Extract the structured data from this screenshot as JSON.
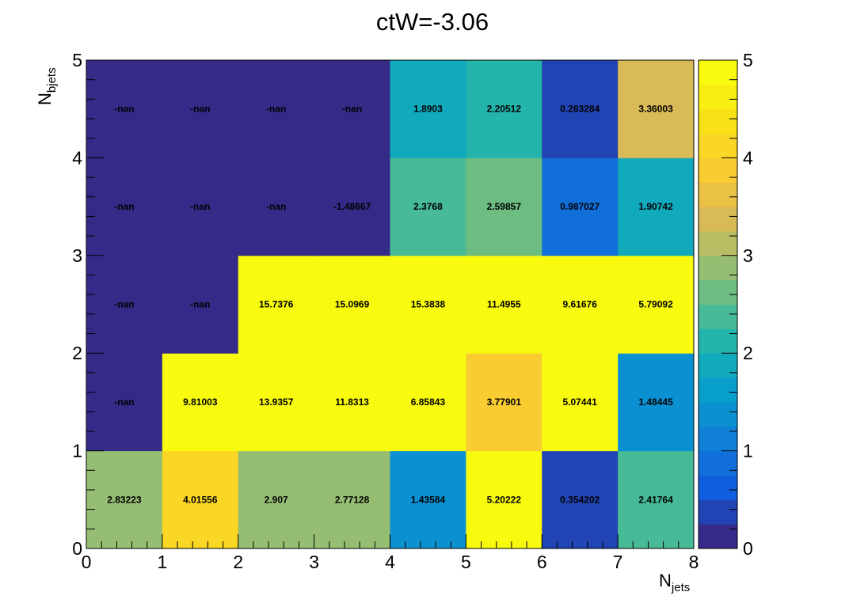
{
  "chart_data": {
    "type": "heatmap",
    "title": "ctW=-3.06",
    "xlabel": "N",
    "xlabel_sub": "jets",
    "ylabel": "N",
    "ylabel_sub": "bjets",
    "xlim": [
      0,
      8
    ],
    "ylim": [
      0,
      5
    ],
    "x_ticks": [
      "0",
      "1",
      "2",
      "3",
      "4",
      "5",
      "6",
      "7",
      "8"
    ],
    "y_ticks": [
      "0",
      "1",
      "2",
      "3",
      "4",
      "5"
    ],
    "colorbar": {
      "min": 0,
      "max": 5,
      "ticks": [
        "0",
        "1",
        "2",
        "3",
        "4",
        "5"
      ]
    },
    "grid": false,
    "rows": [
      {
        "y": 0,
        "values": [
          2.83223,
          4.01556,
          2.907,
          2.77128,
          1.43584,
          5.20222,
          0.354202,
          2.41764
        ],
        "labels": [
          "2.83223",
          "4.01556",
          "2.907",
          "2.77128",
          "1.43584",
          "5.20222",
          "0.354202",
          "2.41764"
        ]
      },
      {
        "y": 1,
        "values": [
          null,
          9.81003,
          13.9357,
          11.8313,
          6.85843,
          3.77901,
          5.07441,
          1.48445
        ],
        "labels": [
          "-nan",
          "9.81003",
          "13.9357",
          "11.8313",
          "6.85843",
          "3.77901",
          "5.07441",
          "1.48445"
        ]
      },
      {
        "y": 2,
        "values": [
          null,
          null,
          15.7376,
          15.0969,
          15.3838,
          11.4955,
          9.61676,
          5.79092
        ],
        "labels": [
          "-nan",
          "-nan",
          "15.7376",
          "15.0969",
          "15.3838",
          "11.4955",
          "9.61676",
          "5.79092"
        ]
      },
      {
        "y": 3,
        "values": [
          null,
          null,
          null,
          -1.48667,
          2.3768,
          2.59857,
          0.987027,
          1.90742
        ],
        "labels": [
          "-nan",
          "-nan",
          "-nan",
          "-1.48667",
          "2.3768",
          "2.59857",
          "0.987027",
          "1.90742"
        ]
      },
      {
        "y": 4,
        "values": [
          null,
          null,
          null,
          null,
          1.8903,
          2.20512,
          0.263284,
          3.36003
        ],
        "labels": [
          "-nan",
          "-nan",
          "-nan",
          "-nan",
          "1.8903",
          "2.20512",
          "0.263284",
          "3.36003"
        ]
      }
    ]
  }
}
